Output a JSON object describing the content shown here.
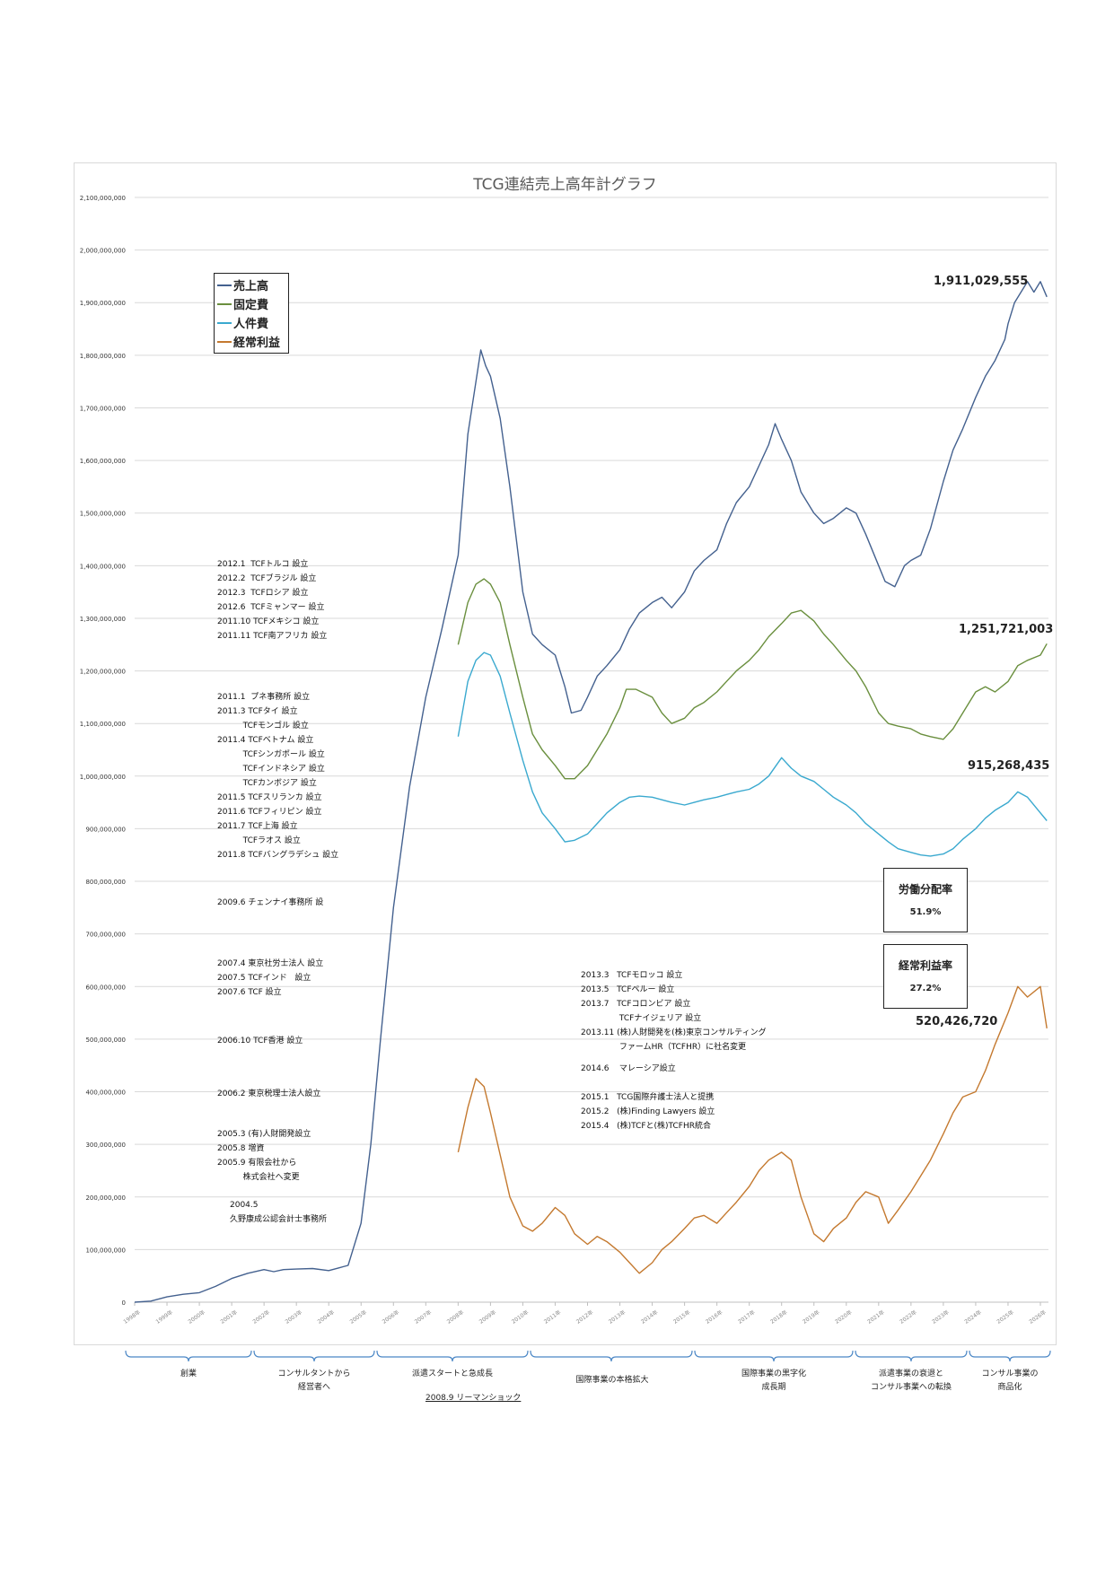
{
  "chart_data": {
    "type": "line",
    "title": "TCG連結売上高年計グラフ",
    "ylim": [
      0,
      2100000000
    ],
    "y_ticks": [
      "2,100,000,000",
      "2,000,000,000",
      "1,900,000,000",
      "1,800,000,000",
      "1,700,000,000",
      "1,600,000,000",
      "1,500,000,000",
      "1,400,000,000",
      "1,300,000,000",
      "1,200,000,000",
      "1,100,000,000",
      "1,000,000,000",
      "900,000,000",
      "800,000,000",
      "700,000,000",
      "600,000,000",
      "500,000,000",
      "400,000,000",
      "300,000,000",
      "200,000,000",
      "100,000,000",
      "0"
    ],
    "x_ticks": [
      "1998年",
      "1999年",
      "2000年",
      "2001年",
      "2002年",
      "2003年",
      "2004年",
      "2005年",
      "2006年",
      "2007年",
      "2008年",
      "2009年",
      "2010年",
      "2011年",
      "2012年",
      "2013年",
      "2014年",
      "2015年",
      "2016年",
      "2017年",
      "2018年",
      "2019年",
      "2020年",
      "2021年",
      "2022年",
      "2023年",
      "2024年",
      "2025年",
      "2026年"
    ],
    "series": [
      {
        "name": "売上高",
        "color": "#44618f",
        "x": [
          1998.0,
          1998.5,
          1999.0,
          1999.5,
          2000.0,
          2000.5,
          2001.0,
          2001.5,
          2002.0,
          2002.3,
          2002.6,
          2003.0,
          2003.5,
          2004.0,
          2004.3,
          2004.6,
          2005.0,
          2005.3,
          2005.6,
          2006.0,
          2006.5,
          2007.0,
          2007.5,
          2008.0,
          2008.3,
          2008.55,
          2008.7,
          2008.85,
          2009.0,
          2009.3,
          2009.6,
          2009.9,
          2010.0,
          2010.3,
          2010.6,
          2011.0,
          2011.3,
          2011.5,
          2011.8,
          2012.0,
          2012.3,
          2012.6,
          2013.0,
          2013.3,
          2013.6,
          2014.0,
          2014.3,
          2014.6,
          2015.0,
          2015.3,
          2015.6,
          2016.0,
          2016.3,
          2016.6,
          2017.0,
          2017.3,
          2017.6,
          2017.8,
          2018.0,
          2018.3,
          2018.6,
          2019.0,
          2019.3,
          2019.6,
          2020.0,
          2020.3,
          2020.6,
          2021.0,
          2021.2,
          2021.5,
          2021.8,
          2022.0,
          2022.3,
          2022.6,
          2023.0,
          2023.3,
          2023.6,
          2024.0,
          2024.3,
          2024.6,
          2024.9,
          2025.0,
          2025.2,
          2025.4,
          2025.6,
          2025.8,
          2026.0,
          2026.2
        ],
        "y": [
          0,
          2000000,
          10000000,
          15000000,
          18000000,
          30000000,
          45000000,
          55000000,
          62000000,
          58000000,
          62000000,
          63000000,
          64000000,
          60000000,
          65000000,
          70000000,
          150000000,
          300000000,
          500000000,
          750000000,
          980000000,
          1150000000,
          1280000000,
          1420000000,
          1650000000,
          1750000000,
          1810000000,
          1780000000,
          1760000000,
          1680000000,
          1550000000,
          1400000000,
          1350000000,
          1270000000,
          1250000000,
          1230000000,
          1170000000,
          1120000000,
          1125000000,
          1150000000,
          1190000000,
          1210000000,
          1240000000,
          1280000000,
          1310000000,
          1330000000,
          1340000000,
          1320000000,
          1350000000,
          1390000000,
          1410000000,
          1430000000,
          1480000000,
          1520000000,
          1550000000,
          1590000000,
          1630000000,
          1670000000,
          1640000000,
          1600000000,
          1540000000,
          1500000000,
          1480000000,
          1490000000,
          1510000000,
          1500000000,
          1460000000,
          1400000000,
          1370000000,
          1360000000,
          1400000000,
          1410000000,
          1420000000,
          1470000000,
          1560000000,
          1620000000,
          1660000000,
          1720000000,
          1760000000,
          1790000000,
          1830000000,
          1860000000,
          1900000000,
          1920000000,
          1940000000,
          1920000000,
          1940000000,
          1911029555
        ]
      },
      {
        "name": "固定費",
        "color": "#6a8f3e",
        "x": [
          2008.0,
          2008.3,
          2008.55,
          2008.8,
          2009.0,
          2009.3,
          2009.6,
          2010.0,
          2010.3,
          2010.6,
          2011.0,
          2011.3,
          2011.6,
          2012.0,
          2012.3,
          2012.6,
          2013.0,
          2013.2,
          2013.5,
          2014.0,
          2014.3,
          2014.6,
          2015.0,
          2015.3,
          2015.6,
          2016.0,
          2016.3,
          2016.6,
          2017.0,
          2017.3,
          2017.6,
          2018.0,
          2018.3,
          2018.6,
          2019.0,
          2019.3,
          2019.6,
          2020.0,
          2020.3,
          2020.6,
          2021.0,
          2021.3,
          2021.6,
          2022.0,
          2022.3,
          2022.6,
          2023.0,
          2023.3,
          2023.6,
          2024.0,
          2024.3,
          2024.6,
          2025.0,
          2025.3,
          2025.6,
          2026.0,
          2026.2
        ],
        "y": [
          1250000000,
          1330000000,
          1365000000,
          1375000000,
          1365000000,
          1330000000,
          1250000000,
          1150000000,
          1080000000,
          1050000000,
          1020000000,
          995000000,
          995000000,
          1020000000,
          1050000000,
          1080000000,
          1130000000,
          1165000000,
          1165000000,
          1150000000,
          1120000000,
          1100000000,
          1110000000,
          1130000000,
          1140000000,
          1160000000,
          1180000000,
          1200000000,
          1220000000,
          1240000000,
          1265000000,
          1290000000,
          1310000000,
          1315000000,
          1295000000,
          1270000000,
          1250000000,
          1220000000,
          1200000000,
          1170000000,
          1120000000,
          1100000000,
          1095000000,
          1090000000,
          1080000000,
          1075000000,
          1070000000,
          1090000000,
          1120000000,
          1160000000,
          1170000000,
          1160000000,
          1180000000,
          1210000000,
          1220000000,
          1230000000,
          1251721003
        ]
      },
      {
        "name": "人件費",
        "color": "#3aa9cf",
        "x": [
          2008.0,
          2008.3,
          2008.55,
          2008.8,
          2009.0,
          2009.3,
          2009.6,
          2010.0,
          2010.3,
          2010.6,
          2011.0,
          2011.3,
          2011.6,
          2012.0,
          2012.3,
          2012.6,
          2013.0,
          2013.3,
          2013.6,
          2014.0,
          2014.3,
          2014.6,
          2015.0,
          2015.3,
          2015.6,
          2016.0,
          2016.3,
          2016.6,
          2017.0,
          2017.3,
          2017.6,
          2018.0,
          2018.3,
          2018.6,
          2019.0,
          2019.3,
          2019.6,
          2020.0,
          2020.3,
          2020.6,
          2021.0,
          2021.3,
          2021.6,
          2022.0,
          2022.3,
          2022.6,
          2023.0,
          2023.3,
          2023.6,
          2024.0,
          2024.3,
          2024.6,
          2025.0,
          2025.3,
          2025.6,
          2026.0,
          2026.2
        ],
        "y": [
          1075000000,
          1180000000,
          1220000000,
          1235000000,
          1230000000,
          1190000000,
          1120000000,
          1030000000,
          970000000,
          930000000,
          900000000,
          875000000,
          878000000,
          890000000,
          910000000,
          930000000,
          950000000,
          960000000,
          962000000,
          960000000,
          955000000,
          950000000,
          945000000,
          950000000,
          955000000,
          960000000,
          965000000,
          970000000,
          975000000,
          985000000,
          1000000000,
          1035000000,
          1015000000,
          1000000000,
          990000000,
          975000000,
          960000000,
          945000000,
          930000000,
          910000000,
          890000000,
          875000000,
          862000000,
          855000000,
          850000000,
          848000000,
          852000000,
          862000000,
          880000000,
          900000000,
          920000000,
          935000000,
          950000000,
          970000000,
          960000000,
          930000000,
          915268435
        ]
      },
      {
        "name": "経常利益",
        "color": "#c4792f",
        "x": [
          2008.0,
          2008.3,
          2008.55,
          2008.8,
          2009.0,
          2009.3,
          2009.6,
          2010.0,
          2010.3,
          2010.6,
          2011.0,
          2011.3,
          2011.6,
          2012.0,
          2012.3,
          2012.6,
          2013.0,
          2013.3,
          2013.6,
          2014.0,
          2014.3,
          2014.6,
          2015.0,
          2015.3,
          2015.6,
          2016.0,
          2016.3,
          2016.6,
          2017.0,
          2017.3,
          2017.6,
          2018.0,
          2018.3,
          2018.6,
          2019.0,
          2019.3,
          2019.6,
          2020.0,
          2020.3,
          2020.6,
          2021.0,
          2021.3,
          2021.6,
          2022.0,
          2022.3,
          2022.6,
          2023.0,
          2023.3,
          2023.6,
          2024.0,
          2024.3,
          2024.6,
          2025.0,
          2025.3,
          2025.6,
          2026.0,
          2026.2
        ],
        "y": [
          285000000,
          370000000,
          425000000,
          410000000,
          360000000,
          280000000,
          200000000,
          145000000,
          135000000,
          150000000,
          180000000,
          165000000,
          130000000,
          110000000,
          125000000,
          115000000,
          95000000,
          75000000,
          55000000,
          75000000,
          100000000,
          115000000,
          140000000,
          160000000,
          165000000,
          150000000,
          170000000,
          190000000,
          220000000,
          250000000,
          270000000,
          285000000,
          270000000,
          200000000,
          130000000,
          115000000,
          140000000,
          160000000,
          190000000,
          210000000,
          200000000,
          150000000,
          175000000,
          210000000,
          240000000,
          270000000,
          320000000,
          360000000,
          390000000,
          400000000,
          440000000,
          490000000,
          550000000,
          600000000,
          580000000,
          600000000,
          520426720
        ]
      }
    ],
    "end_value_labels": [
      "1,911,029,555",
      "1,251,721,003",
      "915,268,435",
      "520,426,720"
    ]
  },
  "legend": [
    "売上高",
    "固定費",
    "人件費",
    "経常利益"
  ],
  "kpi": [
    {
      "title": "労働分配率",
      "value": "51.9%"
    },
    {
      "title": "経常利益率",
      "value": "27.2%"
    }
  ],
  "annotations": {
    "global_expansion": "2012.1  TCFトルコ 設立\n2012.2  TCFブラジル 設立\n2012.3  TCFロシア 設立\n2012.6  TCFミャンマー 設立\n2011.10 TCFメキシコ 設立\n2011.11 TCF南アフリカ 設立",
    "asia_expansion": "2011.1  プネ事務所 設立\n2011.3 TCFタイ 設立\n          TCFモンゴル 設立\n2011.4 TCFベトナム 設立\n          TCFシンガポール 設立\n          TCFインドネシア 設立\n          TCFカンボジア 設立\n2011.5 TCFスリランカ 設立\n2011.6 TCFフィリピン 設立\n2011.7 TCF上海 設立\n          TCFラオス 設立\n2011.8 TCFバングラデシュ 設立",
    "chennai": "2009.6 チェンナイ事務所 設",
    "y2007": "2007.4 東京社労士法人 設立\n2007.5 TCFインド   設立\n2007.6 TCF 設立",
    "y2006_10": "2006.10 TCF香港 設立",
    "y2006_2": "2006.2 東京税理士法人設立",
    "y2005": "2005.3 (有)人財開発設立\n2005.8 増資\n2005.9 有限会社から\n          株式会社へ変更",
    "y2004": "2004.5\n久野康成公認会計士事務所",
    "y2013": "2013.3   TCFモロッコ 設立\n2013.5   TCFペルー 設立\n2013.7   TCFコロンビア 設立\n               TCFナイジェリア 設立\n2013.11 (株)人財開発を(株)東京コンサルティング\n               ファームHR（TCFHR）に社名変更",
    "y2014": "2014.6    マレーシア設立",
    "y2015": "2015.1   TCG国際弁護士法人と提携\n2015.2   (株)Finding Lawyers 設立\n2015.4   (株)TCFと(株)TCFHR統合"
  },
  "eras": [
    {
      "label": "創業"
    },
    {
      "label": "コンサルタントから\n経営者へ"
    },
    {
      "label": "派遣スタートと急成長"
    },
    {
      "label": "国際事業の本格拡大"
    },
    {
      "label": "国際事業の黒字化\n成長期"
    },
    {
      "label": "派遣事業の衰退と\nコンサル事業への転換"
    },
    {
      "label": "コンサル事業の\n商品化"
    }
  ],
  "lehman": "2008.9 リーマンショック"
}
